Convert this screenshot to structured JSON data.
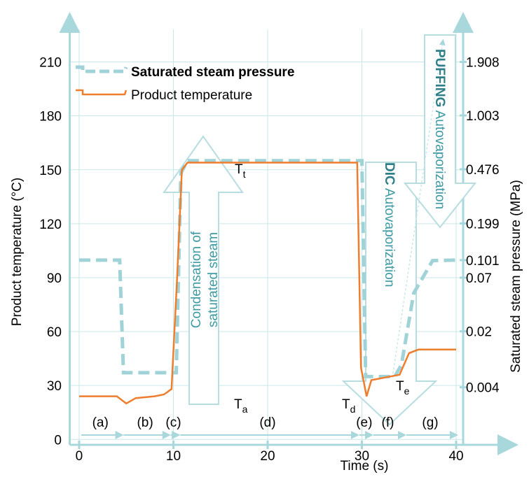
{
  "chart_data": {
    "type": "line",
    "x_label": "Time (s)",
    "y_label": "Product temperature (°C)",
    "y2_label": "Saturated steam pressure (MPa)",
    "xlim": [
      -1,
      45.5
    ],
    "xticks": [
      0,
      10,
      20,
      30,
      40
    ],
    "ylim": [
      -3,
      232
    ],
    "yticks": [
      0,
      30,
      60,
      90,
      120,
      150,
      180,
      210
    ],
    "y2scale": "saturation",
    "y2ticks": [
      0.004,
      0.02,
      0.07,
      0.101,
      0.199,
      0.476,
      1.003,
      1.908
    ],
    "grid": true,
    "legend": "upper left",
    "series": [
      {
        "name": "Saturated steam pressure",
        "color": "#9fd3d8",
        "style": "dashed",
        "axis": "y2",
        "x": [
          0,
          4.3,
          4.7,
          9.5,
          10.3,
          10.8,
          11.5,
          29.5,
          30,
          30.4,
          33.5,
          34.2,
          35.5,
          37.5,
          40
        ],
        "values": [
          0.101,
          0.101,
          0.0063,
          0.0063,
          0.0063,
          0.45,
          0.54,
          0.54,
          0.54,
          0.0056,
          0.0056,
          0.008,
          0.05,
          0.1,
          0.101
        ]
      },
      {
        "name": "Product temperature",
        "color": "#ee7d2e",
        "style": "solid",
        "x": [
          0,
          2,
          4,
          4.5,
          5,
          6,
          8,
          9,
          9.8,
          10.4,
          10.9,
          11.5,
          29.5,
          29.9,
          30.5,
          31,
          33,
          34,
          35,
          36,
          40
        ],
        "values": [
          24,
          24,
          24,
          22,
          20,
          23,
          24,
          25,
          28,
          90,
          150,
          154,
          154,
          40,
          24,
          33,
          35,
          36,
          48,
          50,
          50
        ]
      }
    ],
    "phases": [
      "(a)",
      "(b)",
      "(c)",
      "(d)",
      "(e)",
      "(f)",
      "(g)"
    ],
    "temperature_labels": [
      {
        "main": "T",
        "sub": "t"
      },
      {
        "main": "T",
        "sub": "a"
      },
      {
        "main": "T",
        "sub": "d"
      },
      {
        "main": "T",
        "sub": "e"
      }
    ],
    "arrows": [
      {
        "lines": [
          "Condensation of",
          "saturated steam"
        ]
      },
      {
        "bold": "DIC",
        "rest": " Autovaporization"
      },
      {
        "bold": "PUFFING",
        "rest": " Autovaporization"
      }
    ]
  }
}
